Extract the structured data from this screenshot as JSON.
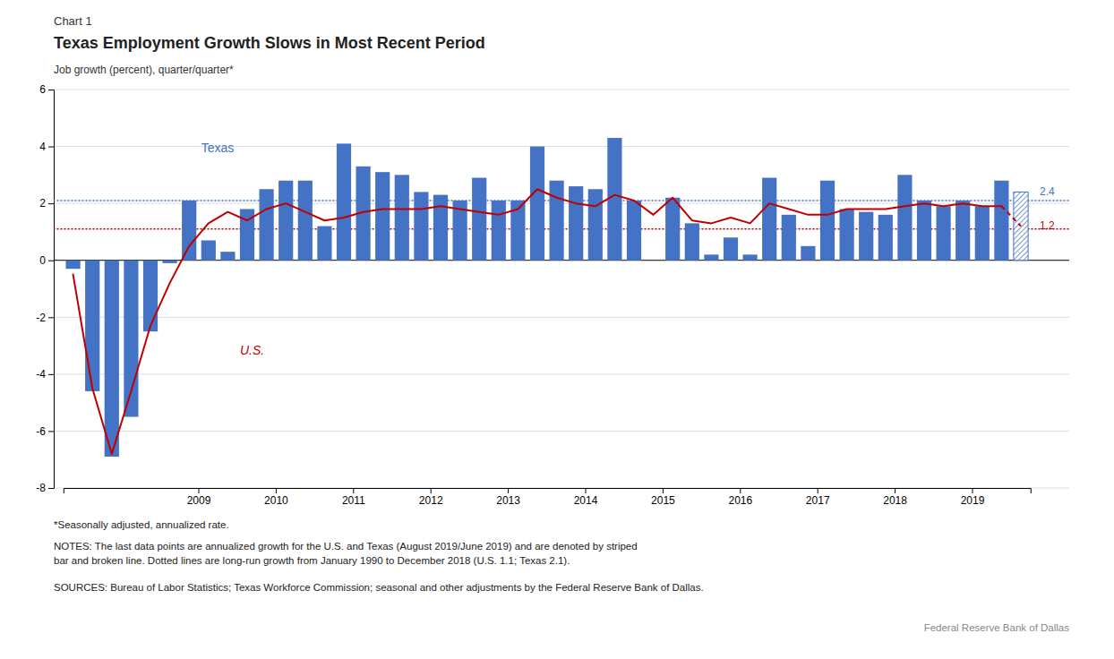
{
  "chart_data": {
    "type": "bar",
    "chart_label": "Chart 1",
    "title": "Texas Employment Growth Slows in Most Recent Period",
    "y_label": "Job growth (percent), quarter/quarter*",
    "categories": [
      null,
      null,
      null,
      null,
      null,
      null,
      null,
      "2009",
      null,
      null,
      null,
      "2010",
      null,
      null,
      null,
      "2011",
      null,
      null,
      null,
      "2012",
      null,
      null,
      null,
      "2013",
      null,
      null,
      null,
      "2014",
      null,
      null,
      null,
      "2015",
      null,
      null,
      null,
      "2016",
      null,
      null,
      null,
      "2017",
      null,
      null,
      null,
      "2018",
      null,
      null,
      null,
      "2019",
      null,
      null
    ],
    "series": [
      {
        "name": "Texas",
        "type": "bar",
        "color": "#4472C4",
        "long_run_growth": 2.1,
        "values": [
          -0.3,
          -4.6,
          -6.9,
          -5.5,
          -2.5,
          -0.1,
          2.1,
          0.7,
          0.3,
          1.8,
          2.5,
          2.8,
          2.8,
          1.2,
          4.1,
          3.3,
          3.1,
          3.0,
          2.4,
          2.3,
          2.1,
          2.9,
          2.1,
          2.1,
          4.0,
          2.8,
          2.6,
          2.5,
          4.3,
          2.1,
          0.0,
          2.2,
          1.3,
          0.2,
          0.8,
          0.2,
          2.9,
          1.6,
          0.5,
          2.8,
          1.8,
          1.7,
          1.6,
          3.0,
          2.1,
          1.9,
          2.1,
          1.9,
          2.8,
          2.4
        ]
      },
      {
        "name": "U.S.",
        "type": "line",
        "color": "#C00000",
        "long_run_growth": 1.1,
        "values": [
          -0.5,
          -4.5,
          -6.8,
          -4.6,
          -2.3,
          -0.8,
          0.5,
          1.3,
          1.7,
          1.4,
          1.8,
          2.0,
          1.7,
          1.4,
          1.5,
          1.7,
          1.8,
          1.8,
          1.8,
          1.9,
          1.8,
          1.7,
          1.6,
          1.8,
          2.5,
          2.2,
          2.0,
          1.9,
          2.3,
          2.1,
          1.6,
          2.2,
          1.4,
          1.3,
          1.5,
          1.3,
          2.0,
          1.8,
          1.6,
          1.6,
          1.8,
          1.8,
          1.8,
          1.9,
          2.0,
          1.9,
          2.0,
          1.9,
          1.9,
          1.2
        ]
      }
    ],
    "annotations": [
      {
        "text": "2.4",
        "y": 2.4,
        "color": "#4472C4"
      },
      {
        "text": "1.2",
        "y": 1.2,
        "color": "#C00000"
      }
    ],
    "ylim": [
      -8,
      6
    ],
    "yticks": [
      -8,
      -6,
      -4,
      -2,
      0,
      2,
      4,
      6
    ],
    "grid": true,
    "notes": [
      "*Seasonally adjusted, annualized rate.",
      "NOTES: The last data points are annualized growth for the U.S. and Texas (August 2019/June 2019) and are denoted by striped\nbar and broken line. Dotted lines are long-run growth from January 1990 to December 2018 (U.S. 1.1; Texas 2.1).",
      "SOURCES: Bureau of Labor Statistics;  Texas Workforce Commission;  seasonal and other adjustments by the Federal Reserve Bank of Dallas."
    ],
    "source": "Federal Reserve  Bank of Dallas"
  }
}
